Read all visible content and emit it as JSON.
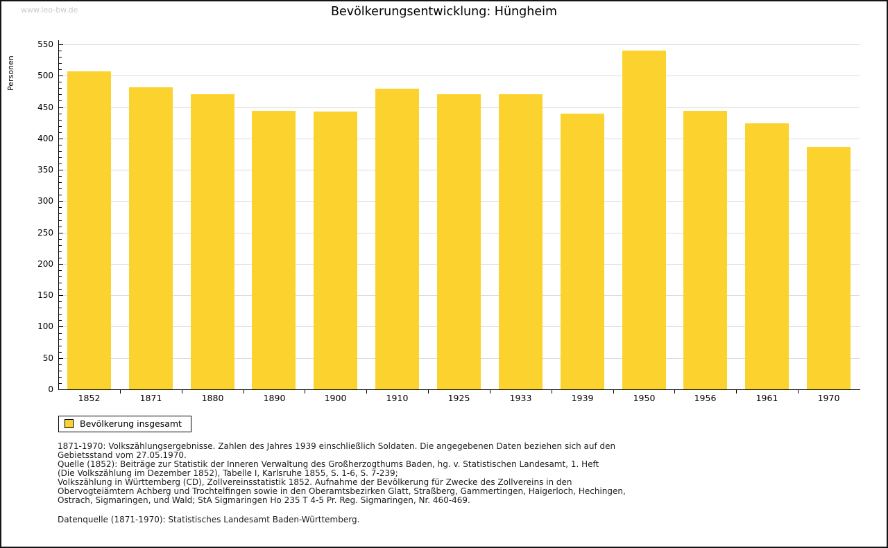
{
  "watermark": "www.leo-bw.de",
  "chart_data": {
    "type": "bar",
    "title": "Bevölkerungsentwicklung: Hüngheim",
    "ylabel": "Personen",
    "categories": [
      "1852",
      "1871",
      "1880",
      "1890",
      "1900",
      "1910",
      "1925",
      "1933",
      "1939",
      "1950",
      "1956",
      "1961",
      "1970"
    ],
    "values": [
      507,
      481,
      471,
      444,
      443,
      479,
      471,
      471,
      440,
      540,
      444,
      424,
      387
    ],
    "ylim": [
      0,
      550
    ],
    "ytick_step": 50,
    "ytick_minor_step": 10,
    "grid": true,
    "bar_color": "#FCD32E",
    "grid_color": "#dcdcdc",
    "legend_label": "Bevölkerung insgesamt",
    "legend_position": "bottom-left"
  },
  "footnotes": [
    "1871-1970: Volkszählungsergebnisse. Zahlen des Jahres 1939 einschließlich Soldaten. Die angegebenen Daten beziehen sich auf den",
    "Gebietsstand vom 27.05.1970.",
    "Quelle (1852): Beiträge zur Statistik der Inneren Verwaltung des Großherzogthums Baden, hg. v. Statistischen Landesamt, 1. Heft",
    "(Die Volkszählung im Dezember 1852), Tabelle I, Karlsruhe 1855, S. 1-6, S. 7-239;",
    "Volkszählung in Württemberg (CD), Zollvereinsstatistik 1852. Aufnahme der Bevölkerung für Zwecke des Zollvereins in den",
    "Obervogteiämtern Achberg und Trochtelfingen sowie in den Oberamtsbezirken Glatt, Straßberg, Gammertingen, Haigerloch, Hechingen,",
    "Ostrach, Sigmaringen, und Wald; StA Sigmaringen Ho 235 T 4-5 Pr. Reg. Sigmaringen, Nr. 460-469."
  ],
  "datasource": "Datenquelle (1871-1970): Statistisches Landesamt Baden-Württemberg."
}
